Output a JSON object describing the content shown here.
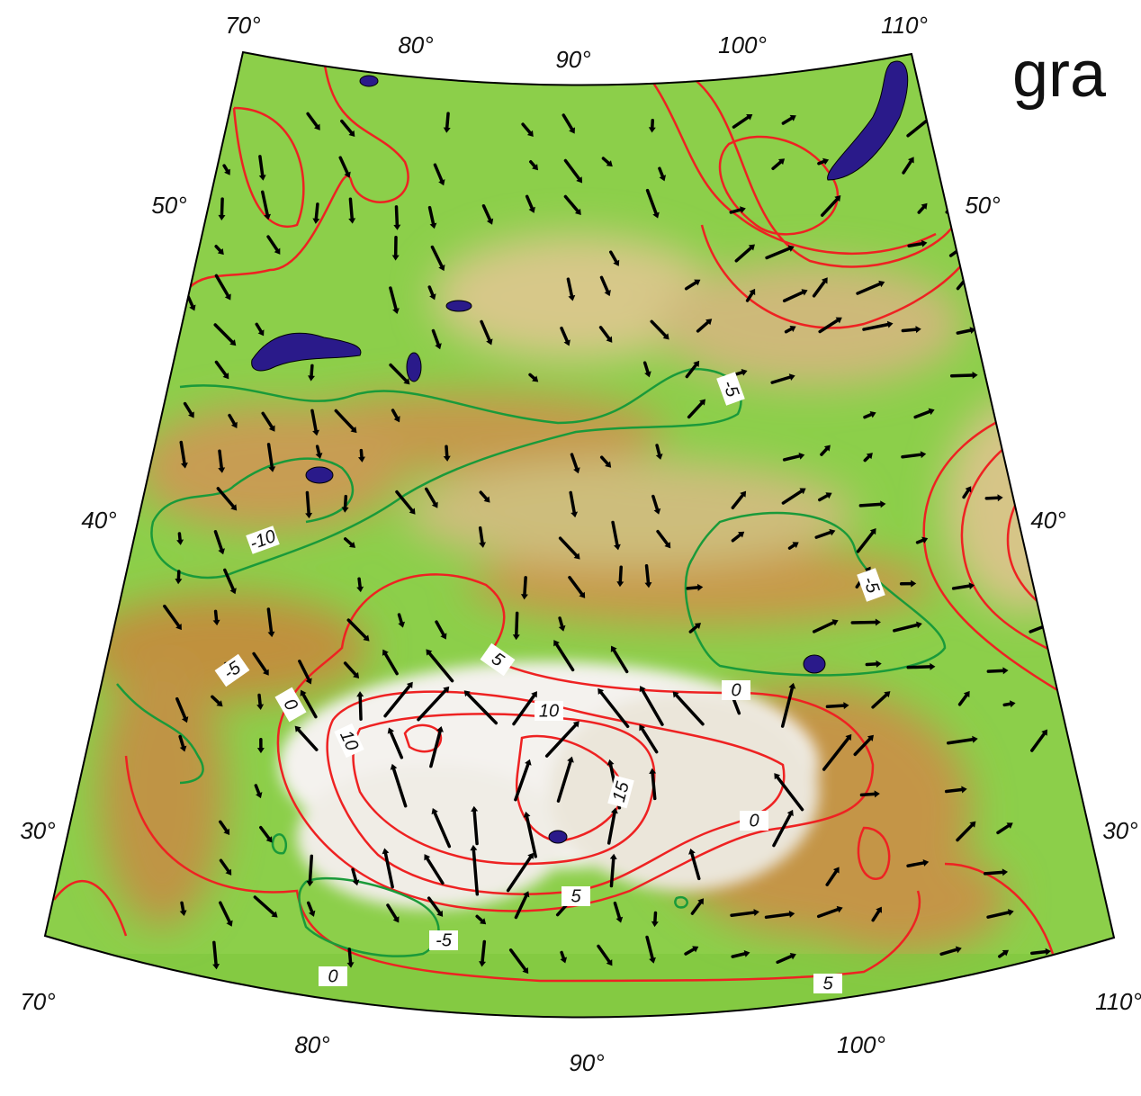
{
  "title_fragment": "gra",
  "graticule": {
    "top": [
      "70°",
      "80°",
      "90°",
      "100°",
      "110°"
    ],
    "bottom": [
      "70°",
      "80°",
      "90°",
      "100°",
      "110°"
    ],
    "left": [
      "50°",
      "40°",
      "30°"
    ],
    "right": [
      "50°",
      "40°",
      "30°"
    ]
  },
  "contour_labels": [
    "-5",
    "-10",
    "-5",
    "-5",
    "5",
    "0",
    "0",
    "10",
    "10",
    "15",
    "0",
    "5",
    "-5",
    "0",
    "5"
  ]
}
